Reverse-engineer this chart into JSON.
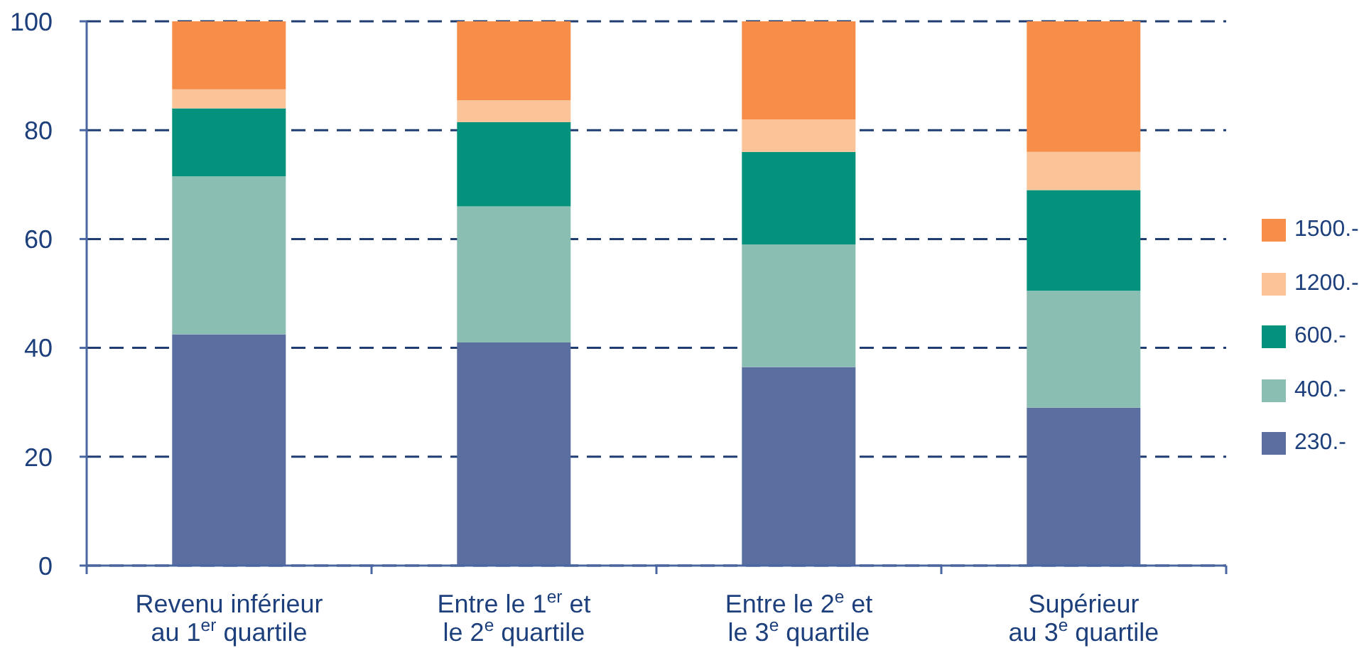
{
  "chart_data": {
    "type": "bar",
    "categories": [
      "Revenu inférieur\nau 1$^{er}$ quartile",
      "Entre le 1$^{er}$ et\nle 2$^{e}$ quartile",
      "Entre le 2$^{e}$ et\nle 3$^{e}$ quartile",
      "Supérieur\nau 3$^{e}$ quartile"
    ],
    "series": [
      {
        "name": "230.-",
        "color": "#5a6fa0",
        "values": [
          42.5,
          41,
          36.5,
          29
        ]
      },
      {
        "name": "400.-",
        "color": "#8abeb3",
        "values": [
          29,
          25,
          22.5,
          21.5
        ]
      },
      {
        "name": "600.-",
        "color": "#05927c",
        "values": [
          12.5,
          15.5,
          17,
          18.5
        ]
      },
      {
        "name": "1200.-",
        "color": "#fbc398",
        "values": [
          3.5,
          4,
          6,
          7
        ]
      },
      {
        "name": "1500.-",
        "color": "#f68d48",
        "values": [
          12.5,
          14.5,
          18,
          24
        ]
      }
    ],
    "stacked": true,
    "ylim": [
      0,
      100
    ],
    "yticks": [
      0,
      20,
      40,
      60,
      80,
      100
    ],
    "grid": "y",
    "legend": "right"
  }
}
